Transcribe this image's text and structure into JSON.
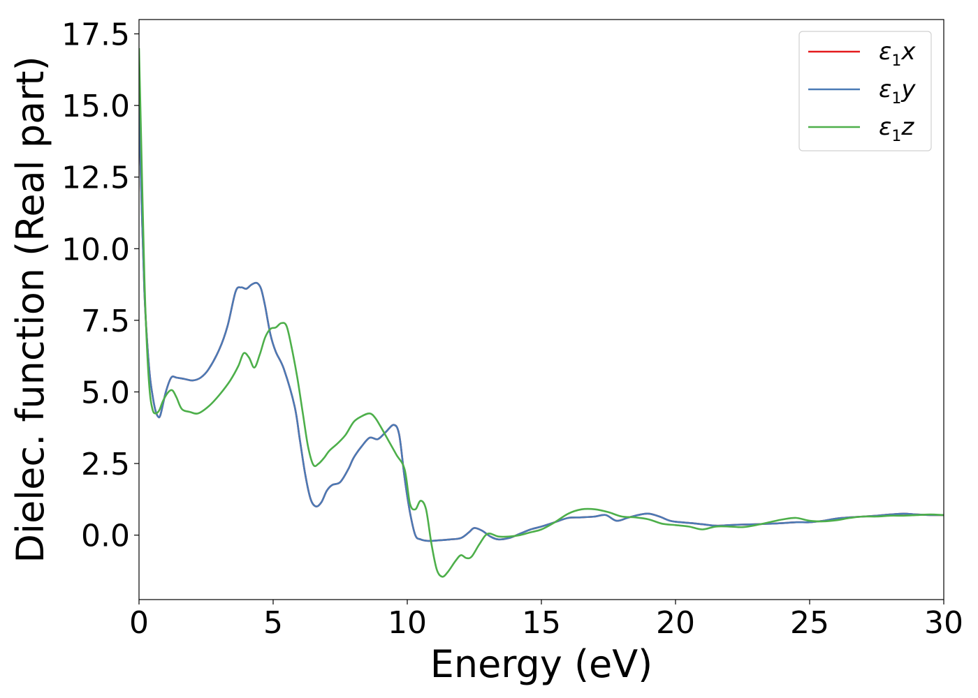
{
  "chart_data": {
    "type": "line",
    "xlabel": "Energy (eV)",
    "ylabel": "Dielec. function (Real part)",
    "xlim": [
      0,
      30
    ],
    "ylim": [
      -2.25,
      18.0
    ],
    "xticks": [
      0,
      5,
      10,
      15,
      20,
      25,
      30
    ],
    "xtick_labels": [
      "0",
      "5",
      "10",
      "15",
      "20",
      "25",
      "30"
    ],
    "yticks": [
      0.0,
      2.5,
      5.0,
      7.5,
      10.0,
      12.5,
      15.0,
      17.5
    ],
    "ytick_labels": [
      "0.0",
      "2.5",
      "5.0",
      "7.5",
      "10.0",
      "12.5",
      "15.0",
      "17.5"
    ],
    "grid": false,
    "legend_position": "top-right",
    "series": [
      {
        "name": "ε1x",
        "legend_base": "ε",
        "legend_sub": "1",
        "legend_suffix": "x",
        "color": "#e41a1c",
        "x": [
          0,
          0.1,
          0.2,
          0.3,
          0.4,
          0.5,
          0.6,
          0.7,
          0.8,
          1.0,
          1.2,
          1.4,
          1.7,
          2.0,
          2.3,
          2.6,
          3.0,
          3.3,
          3.6,
          3.8,
          4.0,
          4.2,
          4.4,
          4.55,
          4.7,
          4.9,
          5.1,
          5.4,
          5.8,
          6.0,
          6.2,
          6.4,
          6.6,
          6.8,
          7.0,
          7.2,
          7.5,
          7.8,
          8.0,
          8.3,
          8.6,
          8.9,
          9.2,
          9.5,
          9.7,
          9.9,
          10.1,
          10.3,
          10.5,
          10.8,
          11.2,
          11.6,
          12.0,
          12.3,
          12.5,
          12.8,
          13.1,
          13.4,
          13.8,
          14.2,
          14.6,
          15.0,
          15.5,
          16.0,
          16.5,
          17.0,
          17.4,
          17.8,
          18.2,
          18.6,
          19.0,
          19.4,
          19.8,
          20.2,
          20.6,
          21.0,
          21.5,
          22.0,
          22.5,
          23.0,
          23.5,
          24.0,
          24.5,
          25.0,
          25.5,
          26.0,
          26.5,
          27.0,
          27.5,
          28.0,
          28.5,
          29.0,
          29.5,
          30.0
        ],
        "y": [
          15.0,
          11.5,
          8.5,
          6.8,
          5.6,
          4.9,
          4.4,
          4.15,
          4.2,
          5.0,
          5.5,
          5.5,
          5.45,
          5.4,
          5.5,
          5.8,
          6.5,
          7.3,
          8.5,
          8.65,
          8.6,
          8.75,
          8.8,
          8.6,
          8.0,
          7.0,
          6.4,
          5.8,
          4.5,
          3.3,
          2.1,
          1.25,
          1.0,
          1.15,
          1.55,
          1.75,
          1.85,
          2.3,
          2.7,
          3.1,
          3.4,
          3.35,
          3.6,
          3.85,
          3.5,
          2.0,
          0.8,
          0.0,
          -0.15,
          -0.2,
          -0.18,
          -0.15,
          -0.1,
          0.1,
          0.25,
          0.15,
          -0.05,
          -0.15,
          -0.1,
          0.05,
          0.2,
          0.3,
          0.45,
          0.6,
          0.62,
          0.65,
          0.7,
          0.5,
          0.6,
          0.7,
          0.75,
          0.65,
          0.5,
          0.45,
          0.42,
          0.38,
          0.33,
          0.35,
          0.37,
          0.38,
          0.4,
          0.42,
          0.45,
          0.45,
          0.5,
          0.58,
          0.62,
          0.65,
          0.68,
          0.72,
          0.75,
          0.72,
          0.7,
          0.7
        ]
      },
      {
        "name": "ε1y",
        "legend_base": "ε",
        "legend_sub": "1",
        "legend_suffix": "y",
        "color": "#4a7ab5",
        "x": [
          0,
          0.1,
          0.2,
          0.3,
          0.4,
          0.5,
          0.6,
          0.7,
          0.8,
          1.0,
          1.2,
          1.4,
          1.7,
          2.0,
          2.3,
          2.6,
          3.0,
          3.3,
          3.6,
          3.8,
          4.0,
          4.2,
          4.4,
          4.55,
          4.7,
          4.9,
          5.1,
          5.4,
          5.8,
          6.0,
          6.2,
          6.4,
          6.6,
          6.8,
          7.0,
          7.2,
          7.5,
          7.8,
          8.0,
          8.3,
          8.6,
          8.9,
          9.2,
          9.5,
          9.7,
          9.9,
          10.1,
          10.3,
          10.5,
          10.8,
          11.2,
          11.6,
          12.0,
          12.3,
          12.5,
          12.8,
          13.1,
          13.4,
          13.8,
          14.2,
          14.6,
          15.0,
          15.5,
          16.0,
          16.5,
          17.0,
          17.4,
          17.8,
          18.2,
          18.6,
          19.0,
          19.4,
          19.8,
          20.2,
          20.6,
          21.0,
          21.5,
          22.0,
          22.5,
          23.0,
          23.5,
          24.0,
          24.5,
          25.0,
          25.5,
          26.0,
          26.5,
          27.0,
          27.5,
          28.0,
          28.5,
          29.0,
          29.5,
          30.0
        ],
        "y": [
          15.0,
          11.5,
          8.5,
          6.8,
          5.6,
          4.9,
          4.4,
          4.15,
          4.2,
          5.0,
          5.5,
          5.5,
          5.45,
          5.4,
          5.5,
          5.8,
          6.5,
          7.3,
          8.5,
          8.65,
          8.6,
          8.75,
          8.8,
          8.6,
          8.0,
          7.0,
          6.4,
          5.8,
          4.5,
          3.3,
          2.1,
          1.25,
          1.0,
          1.15,
          1.55,
          1.75,
          1.85,
          2.3,
          2.7,
          3.1,
          3.4,
          3.35,
          3.6,
          3.85,
          3.5,
          2.0,
          0.8,
          0.0,
          -0.15,
          -0.2,
          -0.18,
          -0.15,
          -0.1,
          0.1,
          0.25,
          0.15,
          -0.05,
          -0.15,
          -0.1,
          0.05,
          0.2,
          0.3,
          0.45,
          0.6,
          0.62,
          0.65,
          0.7,
          0.5,
          0.6,
          0.7,
          0.75,
          0.65,
          0.5,
          0.45,
          0.42,
          0.38,
          0.33,
          0.35,
          0.37,
          0.38,
          0.4,
          0.42,
          0.45,
          0.45,
          0.5,
          0.58,
          0.62,
          0.65,
          0.68,
          0.72,
          0.75,
          0.72,
          0.7,
          0.7
        ]
      },
      {
        "name": "ε1z",
        "legend_base": "ε",
        "legend_sub": "1",
        "legend_suffix": "z",
        "color": "#4daf4a",
        "x": [
          0,
          0.1,
          0.2,
          0.3,
          0.4,
          0.5,
          0.6,
          0.75,
          0.9,
          1.1,
          1.25,
          1.4,
          1.6,
          1.9,
          2.2,
          2.6,
          3.0,
          3.4,
          3.7,
          3.9,
          4.1,
          4.3,
          4.5,
          4.7,
          4.9,
          5.1,
          5.3,
          5.5,
          5.7,
          5.9,
          6.1,
          6.3,
          6.5,
          6.7,
          6.9,
          7.1,
          7.4,
          7.7,
          8.0,
          8.3,
          8.6,
          8.8,
          9.0,
          9.3,
          9.6,
          9.9,
          10.1,
          10.3,
          10.5,
          10.7,
          10.9,
          11.1,
          11.3,
          11.5,
          11.8,
          12.0,
          12.2,
          12.4,
          12.7,
          13.0,
          13.4,
          13.8,
          14.2,
          14.6,
          15.0,
          15.5,
          16.0,
          16.5,
          17.0,
          17.5,
          18.0,
          18.5,
          19.0,
          19.5,
          20.0,
          20.5,
          21.0,
          21.5,
          22.0,
          22.5,
          23.0,
          23.5,
          24.0,
          24.5,
          25.0,
          25.5,
          26.0,
          26.5,
          27.0,
          27.5,
          28.0,
          28.5,
          29.0,
          29.5,
          30.0
        ],
        "y": [
          17.0,
          13.0,
          9.0,
          6.5,
          5.0,
          4.4,
          4.25,
          4.35,
          4.7,
          5.0,
          5.05,
          4.8,
          4.4,
          4.3,
          4.25,
          4.5,
          4.9,
          5.4,
          5.9,
          6.35,
          6.2,
          5.85,
          6.3,
          6.9,
          7.2,
          7.25,
          7.4,
          7.3,
          6.5,
          5.5,
          4.3,
          3.1,
          2.45,
          2.5,
          2.7,
          2.95,
          3.2,
          3.5,
          3.95,
          4.15,
          4.25,
          4.1,
          3.8,
          3.3,
          2.8,
          2.3,
          1.1,
          0.9,
          1.2,
          0.9,
          -0.3,
          -1.2,
          -1.45,
          -1.3,
          -0.9,
          -0.7,
          -0.8,
          -0.75,
          -0.3,
          0.05,
          -0.05,
          -0.05,
          0.0,
          0.1,
          0.2,
          0.45,
          0.75,
          0.9,
          0.9,
          0.8,
          0.65,
          0.62,
          0.55,
          0.4,
          0.35,
          0.3,
          0.2,
          0.3,
          0.3,
          0.28,
          0.35,
          0.45,
          0.55,
          0.6,
          0.5,
          0.48,
          0.52,
          0.6,
          0.65,
          0.65,
          0.68,
          0.68,
          0.7,
          0.72,
          0.7
        ]
      }
    ]
  }
}
